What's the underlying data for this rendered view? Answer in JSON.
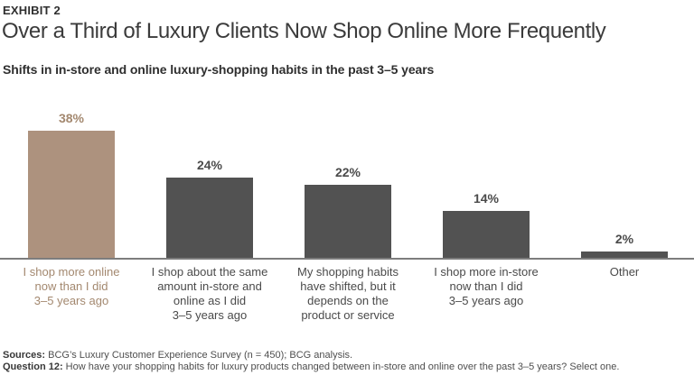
{
  "exhibit_label": "EXHIBIT 2",
  "title": "Over a Third of Luxury Clients Now Shop Online More Frequently",
  "subtitle": "Shifts in in-store and online luxury-shopping habits in the past 3–5 years",
  "colors": {
    "highlight_bar": "#ad927e",
    "highlight_text": "#a3886f",
    "default_bar": "#525252",
    "default_text": "#4a4a4a",
    "axis_line": "#7d7d7d"
  },
  "chart_data": {
    "type": "bar",
    "title": "Shifts in in-store and online luxury-shopping habits in the past 3–5 years",
    "categories": [
      "I shop more online now than I did 3–5 years ago",
      "I shop about the same amount in-store and online as I did 3–5 years ago",
      "My shopping habits have shifted, but it depends on the product or service",
      "I shop more in-store now than I did 3–5 years ago",
      "Other"
    ],
    "category_lines": [
      [
        "I shop more online",
        "now than I did",
        "3–5 years ago"
      ],
      [
        "I shop about the same",
        "amount in-store and",
        "online as I did",
        "3–5 years ago"
      ],
      [
        "My shopping habits",
        "have shifted, but it",
        "depends on the",
        "product or service"
      ],
      [
        "I shop more in-store",
        "now than I did",
        "3–5 years ago"
      ],
      [
        "Other"
      ]
    ],
    "values": [
      38,
      24,
      22,
      14,
      2
    ],
    "value_labels": [
      "38%",
      "24%",
      "22%",
      "14%",
      "2%"
    ],
    "highlighted_index": 0,
    "xlabel": "",
    "ylabel": "",
    "ylim": [
      0,
      40
    ],
    "grid": false,
    "legend": false
  },
  "footer": {
    "sources_label": "Sources:",
    "sources_text": " BCG’s Luxury Customer Experience Survey (n = 450); BCG analysis.",
    "question_label": "Question 12:",
    "question_text": " How have your shopping habits for luxury products changed between in-store and online over the past 3–5 years? Select one."
  }
}
